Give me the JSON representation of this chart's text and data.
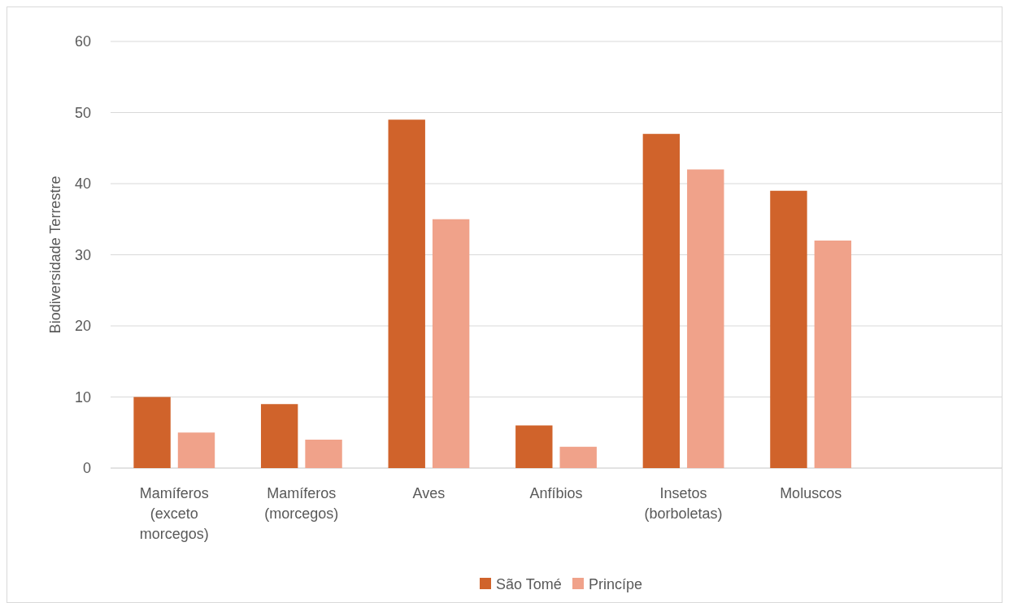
{
  "chart_data": {
    "type": "bar",
    "ylabel": "Biodiversidade Terrestre",
    "categories": [
      "Mamíferos (exceto morcegos)",
      "Mamíferos (morcegos)",
      "Aves",
      "Anfíbios",
      "Insetos (borboletas)",
      "Moluscos",
      null
    ],
    "series": [
      {
        "name": "São Tomé",
        "color": "#d0632b",
        "values": [
          10,
          9,
          49,
          6,
          47,
          39,
          null
        ]
      },
      {
        "name": "Princípe",
        "color": "#f0a28a",
        "values": [
          5,
          4,
          35,
          3,
          42,
          32,
          null
        ]
      }
    ],
    "ylim": [
      0,
      60
    ],
    "yticks": [
      0,
      10,
      20,
      30,
      40,
      50,
      60
    ],
    "grid": "y",
    "legend": "bottom"
  }
}
